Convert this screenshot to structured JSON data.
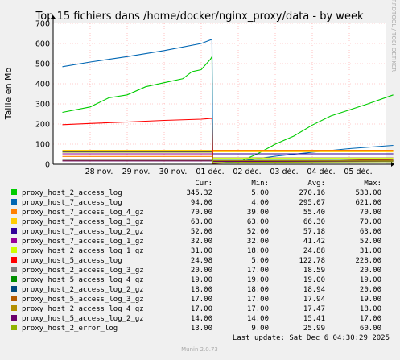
{
  "chart_data": {
    "type": "line",
    "title": "Top 15 fichiers dans /home/docker/nginx_proxy/data - by week",
    "ylabel": "Taille en Mo",
    "xlabel": "",
    "ylim": [
      0,
      700
    ],
    "yticks": [
      0,
      100,
      200,
      300,
      400,
      500,
      600,
      700
    ],
    "xlim": [
      "2025-11-27",
      "2025-12-06"
    ],
    "xticks": [
      {
        "x": "2025-11-28",
        "label": "28 nov."
      },
      {
        "x": "2025-11-29",
        "label": "29 nov."
      },
      {
        "x": "2025-11-30",
        "label": "30 nov."
      },
      {
        "x": "2025-12-01",
        "label": "01 déc."
      },
      {
        "x": "2025-12-02",
        "label": "02 déc."
      },
      {
        "x": "2025-12-03",
        "label": "03 déc."
      },
      {
        "x": "2025-12-04",
        "label": "04 déc."
      },
      {
        "x": "2025-12-05",
        "label": "05 déc."
      }
    ],
    "grid": true,
    "side_label": "RRDTOOL / TOBI OETIKER",
    "legend_headers": {
      "cur": "Cur:",
      "min": "Min:",
      "avg": "Avg:",
      "max": "Max:"
    },
    "series": [
      {
        "name": "proxy_host_2_access_log",
        "color": "#00cc00",
        "cur": "345.32",
        "min": "5.00",
        "avg": "270.16",
        "max": "533.00",
        "points": [
          [
            "2025-11-27 06:00",
            258
          ],
          [
            "2025-11-28 00:00",
            285
          ],
          [
            "2025-11-28 12:00",
            330
          ],
          [
            "2025-11-29 00:00",
            345
          ],
          [
            "2025-11-29 12:00",
            385
          ],
          [
            "2025-11-30 00:00",
            405
          ],
          [
            "2025-11-30 12:00",
            425
          ],
          [
            "2025-11-30 18:00",
            460
          ],
          [
            "2025-12-01 00:00",
            470
          ],
          [
            "2025-12-01 06:00",
            522
          ],
          [
            "2025-12-01 07:00",
            535
          ],
          [
            "2025-12-01 07:30",
            5
          ],
          [
            "2025-12-02 00:00",
            10
          ],
          [
            "2025-12-02 12:00",
            50
          ],
          [
            "2025-12-03 00:00",
            100
          ],
          [
            "2025-12-03 12:00",
            140
          ],
          [
            "2025-12-04 00:00",
            195
          ],
          [
            "2025-12-04 12:00",
            240
          ],
          [
            "2025-12-05 00:00",
            270
          ],
          [
            "2025-12-05 12:00",
            300
          ],
          [
            "2025-12-06 04:30",
            345
          ]
        ]
      },
      {
        "name": "proxy_host_7_access_log",
        "color": "#0066b3",
        "cur": "94.00",
        "min": "4.00",
        "avg": "295.07",
        "max": "621.00",
        "points": [
          [
            "2025-11-27 06:00",
            485
          ],
          [
            "2025-11-28 00:00",
            508
          ],
          [
            "2025-11-29 00:00",
            535
          ],
          [
            "2025-11-30 00:00",
            565
          ],
          [
            "2025-12-01 00:00",
            600
          ],
          [
            "2025-12-01 07:00",
            621
          ],
          [
            "2025-12-01 07:30",
            4
          ],
          [
            "2025-12-02 00:00",
            15
          ],
          [
            "2025-12-03 00:00",
            40
          ],
          [
            "2025-12-04 00:00",
            60
          ],
          [
            "2025-12-05 00:00",
            78
          ],
          [
            "2025-12-06 04:30",
            94
          ]
        ]
      },
      {
        "name": "proxy_host_7_access_log_4_gz",
        "color": "#ff8000",
        "cur": "70.00",
        "min": "39.00",
        "avg": "55.40",
        "max": "70.00",
        "points": [
          [
            "2025-11-27 06:00",
            39
          ],
          [
            "2025-12-01 07:00",
            39
          ],
          [
            "2025-12-01 07:30",
            70
          ],
          [
            "2025-12-06 04:30",
            70
          ]
        ]
      },
      {
        "name": "proxy_host_7_access_log_3_gz",
        "color": "#ffcc00",
        "cur": "63.00",
        "min": "63.00",
        "avg": "66.30",
        "max": "70.00",
        "points": [
          [
            "2025-11-27 06:00",
            70
          ],
          [
            "2025-12-01 07:00",
            70
          ],
          [
            "2025-12-01 07:30",
            63
          ],
          [
            "2025-12-06 04:30",
            63
          ]
        ]
      },
      {
        "name": "proxy_host_7_access_log_2_gz",
        "color": "#330099",
        "cur": "52.00",
        "min": "52.00",
        "avg": "57.18",
        "max": "63.00",
        "points": [
          [
            "2025-11-27 06:00",
            63
          ],
          [
            "2025-12-01 07:00",
            63
          ],
          [
            "2025-12-01 07:30",
            52
          ],
          [
            "2025-12-06 04:30",
            52
          ]
        ]
      },
      {
        "name": "proxy_host_7_access_log_1_gz",
        "color": "#990099",
        "cur": "32.00",
        "min": "32.00",
        "avg": "41.42",
        "max": "52.00",
        "points": [
          [
            "2025-11-27 06:00",
            52
          ],
          [
            "2025-12-01 07:00",
            52
          ],
          [
            "2025-12-01 07:30",
            32
          ],
          [
            "2025-12-06 04:30",
            32
          ]
        ]
      },
      {
        "name": "proxy_host_2_access_log_1_gz",
        "color": "#ccff00",
        "cur": "31.00",
        "min": "18.00",
        "avg": "24.88",
        "max": "31.00",
        "points": [
          [
            "2025-11-27 06:00",
            18
          ],
          [
            "2025-12-01 07:00",
            18
          ],
          [
            "2025-12-01 07:30",
            31
          ],
          [
            "2025-12-06 04:30",
            31
          ]
        ]
      },
      {
        "name": "proxy_host_5_access_log",
        "color": "#ff0000",
        "cur": "24.98",
        "min": "5.00",
        "avg": "122.78",
        "max": "228.00",
        "points": [
          [
            "2025-11-27 06:00",
            197
          ],
          [
            "2025-11-28 00:00",
            203
          ],
          [
            "2025-11-29 00:00",
            210
          ],
          [
            "2025-11-30 00:00",
            218
          ],
          [
            "2025-12-01 00:00",
            224
          ],
          [
            "2025-12-01 07:00",
            228
          ],
          [
            "2025-12-01 07:30",
            5
          ],
          [
            "2025-12-02 00:00",
            8
          ],
          [
            "2025-12-03 00:00",
            13
          ],
          [
            "2025-12-04 00:00",
            17
          ],
          [
            "2025-12-05 00:00",
            21
          ],
          [
            "2025-12-06 04:30",
            25
          ]
        ]
      },
      {
        "name": "proxy_host_2_access_log_3_gz",
        "color": "#808080",
        "cur": "20.00",
        "min": "17.00",
        "avg": "18.59",
        "max": "20.00",
        "points": [
          [
            "2025-11-27 06:00",
            17
          ],
          [
            "2025-12-01 07:00",
            17
          ],
          [
            "2025-12-01 07:30",
            20
          ],
          [
            "2025-12-06 04:30",
            20
          ]
        ]
      },
      {
        "name": "proxy_host_5_access_log_4_gz",
        "color": "#008f00",
        "cur": "19.00",
        "min": "19.00",
        "avg": "19.00",
        "max": "19.00",
        "points": [
          [
            "2025-11-27 06:00",
            19
          ],
          [
            "2025-12-06 04:30",
            19
          ]
        ]
      },
      {
        "name": "proxy_host_2_access_log_2_gz",
        "color": "#00487d",
        "cur": "18.00",
        "min": "18.00",
        "avg": "18.94",
        "max": "20.00",
        "points": [
          [
            "2025-11-27 06:00",
            20
          ],
          [
            "2025-12-01 07:00",
            20
          ],
          [
            "2025-12-01 07:30",
            18
          ],
          [
            "2025-12-06 04:30",
            18
          ]
        ]
      },
      {
        "name": "proxy_host_5_access_log_3_gz",
        "color": "#b35a00",
        "cur": "17.00",
        "min": "17.00",
        "avg": "17.94",
        "max": "19.00",
        "points": [
          [
            "2025-11-27 06:00",
            19
          ],
          [
            "2025-12-01 07:00",
            19
          ],
          [
            "2025-12-01 07:30",
            17
          ],
          [
            "2025-12-06 04:30",
            17
          ]
        ]
      },
      {
        "name": "proxy_host_2_access_log_4_gz",
        "color": "#b38f00",
        "cur": "17.00",
        "min": "17.00",
        "avg": "17.47",
        "max": "18.00",
        "points": [
          [
            "2025-11-27 06:00",
            18
          ],
          [
            "2025-12-01 07:00",
            18
          ],
          [
            "2025-12-01 07:30",
            17
          ],
          [
            "2025-12-06 04:30",
            17
          ]
        ]
      },
      {
        "name": "proxy_host_5_access_log_2_gz",
        "color": "#6b006b",
        "cur": "14.00",
        "min": "14.00",
        "avg": "15.41",
        "max": "17.00",
        "points": [
          [
            "2025-11-27 06:00",
            17
          ],
          [
            "2025-12-01 07:00",
            17
          ],
          [
            "2025-12-01 07:30",
            14
          ],
          [
            "2025-12-06 04:30",
            14
          ]
        ]
      },
      {
        "name": "proxy_host_2_error_log",
        "color": "#8fb300",
        "cur": "13.00",
        "min": "9.00",
        "avg": "25.99",
        "max": "60.00",
        "points": [
          [
            "2025-11-27 06:00",
            60
          ],
          [
            "2025-12-01 07:00",
            60
          ],
          [
            "2025-12-01 07:30",
            9
          ],
          [
            "2025-12-06 04:30",
            13
          ]
        ]
      }
    ],
    "last_update": "Last update: Sat Dec  6 04:30:29 2025",
    "footer": "Munin 2.0.73"
  }
}
